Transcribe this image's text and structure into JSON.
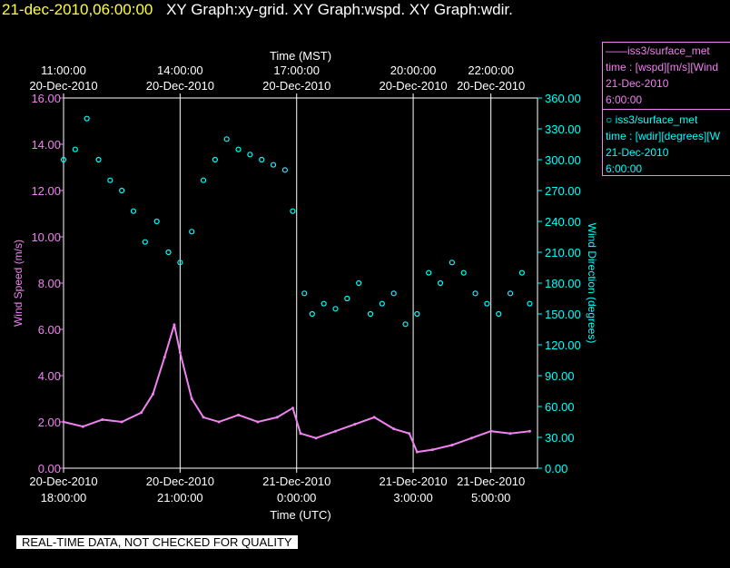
{
  "header": {
    "date": "21-dec-2010,06:00:00",
    "graphs": "XY Graph:xy-grid.  XY Graph:wspd.  XY Graph:wdir."
  },
  "legend": {
    "wspd": {
      "line1": "iss3/surface_met",
      "line2": "time : [wspd][m/s][Wind",
      "line3": "21-Dec-2010",
      "line4": "6:00:00"
    },
    "wdir": {
      "line1": "iss3/surface_met",
      "line2": "time : [wdir][degrees][W",
      "line3": "21-Dec-2010",
      "line4": "6:00:00"
    }
  },
  "banner": "REAL-TIME DATA, NOT CHECKED FOR QUALITY",
  "chart_data": {
    "type": "scatter",
    "top_axis": {
      "label": "Time (MST)",
      "ticks": [
        {
          "x": 0,
          "time": "11:00:00",
          "date": "20-Dec-2010"
        },
        {
          "x": 3,
          "time": "14:00:00",
          "date": "20-Dec-2010"
        },
        {
          "x": 6,
          "time": "17:00:00",
          "date": "20-Dec-2010"
        },
        {
          "x": 9,
          "time": "20:00:00",
          "date": "20-Dec-2010"
        },
        {
          "x": 11,
          "time": "22:00:00",
          "date": "20-Dec-2010"
        }
      ]
    },
    "bottom_axis": {
      "label": "Time (UTC)",
      "ticks": [
        {
          "x": 0,
          "date": "20-Dec-2010",
          "time": "18:00:00"
        },
        {
          "x": 3,
          "date": "20-Dec-2010",
          "time": "21:00:00"
        },
        {
          "x": 6,
          "date": "21-Dec-2010",
          "time": "0:00:00"
        },
        {
          "x": 9,
          "date": "21-Dec-2010",
          "time": "3:00:00"
        },
        {
          "x": 11,
          "date": "21-Dec-2010",
          "time": "5:00:00"
        }
      ]
    },
    "xlim": [
      0,
      12.2
    ],
    "y_left": {
      "label": "Wind Speed (m/s)",
      "ylim": [
        0,
        16
      ],
      "ticks": [
        "0.00",
        "2.00",
        "4.00",
        "6.00",
        "8.00",
        "10.00",
        "12.00",
        "14.00",
        "16.00"
      ]
    },
    "y_right": {
      "label": "Wind Direction (degrees)",
      "ylim": [
        0,
        360
      ],
      "ticks": [
        "0.00",
        "30.00",
        "60.00",
        "90.00",
        "120.00",
        "150.00",
        "180.00",
        "210.00",
        "240.00",
        "270.00",
        "300.00",
        "330.00",
        "360.00"
      ]
    },
    "grid": true,
    "series": [
      {
        "name": "iss3/surface_met time : [wspd][m/s]",
        "axis": "left",
        "color": "#ee82ee",
        "style": "line",
        "x": [
          0,
          0.5,
          1.0,
          1.5,
          2.0,
          2.3,
          2.6,
          2.85,
          3.0,
          3.3,
          3.6,
          4.0,
          4.5,
          5.0,
          5.5,
          5.9,
          6.1,
          6.5,
          7.0,
          7.5,
          8.0,
          8.5,
          8.9,
          9.1,
          9.5,
          10.0,
          10.5,
          11.0,
          11.5,
          12.0
        ],
        "y": [
          2.0,
          1.8,
          2.1,
          2.0,
          2.4,
          3.2,
          4.8,
          6.2,
          5.0,
          3.0,
          2.2,
          2.0,
          2.3,
          2.0,
          2.2,
          2.6,
          1.5,
          1.3,
          1.6,
          1.9,
          2.2,
          1.7,
          1.5,
          0.7,
          0.8,
          1.0,
          1.3,
          1.6,
          1.5,
          1.6
        ]
      },
      {
        "name": "iss3/surface_met time : [wdir][degrees]",
        "axis": "right",
        "color": "#00ffff",
        "style": "points",
        "x": [
          0,
          0.3,
          0.6,
          0.9,
          1.2,
          1.5,
          1.8,
          2.1,
          2.4,
          2.7,
          3.0,
          3.3,
          3.6,
          3.9,
          4.2,
          4.5,
          4.8,
          5.1,
          5.4,
          5.7,
          5.9,
          6.2,
          6.4,
          6.7,
          7.0,
          7.3,
          7.6,
          7.9,
          8.2,
          8.5,
          8.8,
          9.1,
          9.4,
          9.7,
          10.0,
          10.3,
          10.6,
          10.9,
          11.2,
          11.5,
          11.8,
          12.0
        ],
        "y": [
          300,
          310,
          340,
          300,
          280,
          270,
          250,
          220,
          240,
          210,
          200,
          230,
          280,
          300,
          320,
          310,
          305,
          300,
          295,
          290,
          250,
          170,
          150,
          160,
          155,
          165,
          180,
          150,
          160,
          170,
          140,
          150,
          190,
          180,
          200,
          190,
          170,
          160,
          150,
          170,
          190,
          160
        ]
      }
    ]
  }
}
